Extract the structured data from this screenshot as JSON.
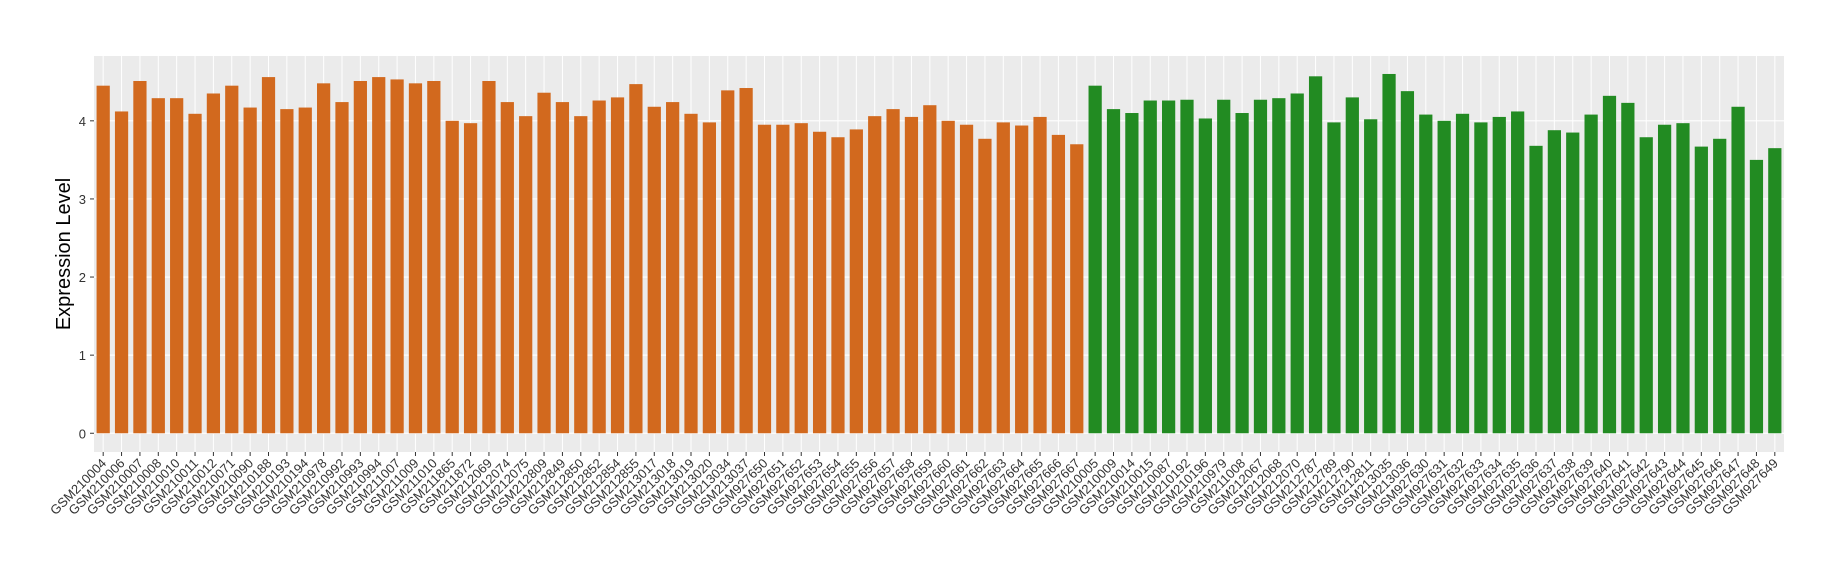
{
  "chart_data": {
    "type": "bar",
    "y_label": "Expression Level",
    "ylim": [
      -0.24,
      4.83
    ],
    "yticks": [
      0,
      1,
      2,
      3,
      4
    ],
    "grid": true,
    "series": [
      {
        "color": "#d2691e",
        "categories": [
          "GSM210004",
          "GSM210006",
          "GSM210007",
          "GSM210008",
          "GSM210010",
          "GSM210011",
          "GSM210012",
          "GSM210071",
          "GSM210090",
          "GSM210188",
          "GSM210193",
          "GSM210194",
          "GSM210978",
          "GSM210992",
          "GSM210993",
          "GSM210994",
          "GSM211007",
          "GSM211009",
          "GSM211010",
          "GSM211865",
          "GSM211872",
          "GSM212069",
          "GSM212074",
          "GSM212075",
          "GSM212809",
          "GSM212849",
          "GSM212850",
          "GSM212852",
          "GSM212854",
          "GSM212855",
          "GSM213017",
          "GSM213018",
          "GSM213019",
          "GSM213020",
          "GSM213034",
          "GSM213037",
          "GSM927650",
          "GSM927651",
          "GSM927652",
          "GSM927653",
          "GSM927654",
          "GSM927655",
          "GSM927656",
          "GSM927657",
          "GSM927658",
          "GSM927659",
          "GSM927660",
          "GSM927661",
          "GSM927662",
          "GSM927663",
          "GSM927664",
          "GSM927665",
          "GSM927666",
          "GSM927667"
        ],
        "values": [
          4.45,
          4.12,
          4.51,
          4.29,
          4.29,
          4.09,
          4.35,
          4.45,
          4.17,
          4.56,
          4.15,
          4.17,
          4.48,
          4.24,
          4.51,
          4.56,
          4.53,
          4.48,
          4.51,
          4.0,
          3.97,
          4.51,
          4.24,
          4.06,
          4.36,
          4.24,
          4.06,
          4.26,
          4.3,
          4.47,
          4.18,
          4.24,
          4.09,
          3.98,
          4.39,
          4.42,
          3.95,
          3.95,
          3.97,
          3.86,
          3.79,
          3.89,
          4.06,
          4.15,
          4.05,
          4.2,
          4.0,
          3.95,
          3.77,
          3.98,
          3.94,
          4.05,
          3.82,
          3.7
        ]
      },
      {
        "color": "#228b22",
        "categories": [
          "GSM210005",
          "GSM210009",
          "GSM210014",
          "GSM210015",
          "GSM210087",
          "GSM210192",
          "GSM210196",
          "GSM210979",
          "GSM211008",
          "GSM212067",
          "GSM212068",
          "GSM212070",
          "GSM212787",
          "GSM212789",
          "GSM212790",
          "GSM212811",
          "GSM213035",
          "GSM213036",
          "GSM927630",
          "GSM927631",
          "GSM927632",
          "GSM927633",
          "GSM927634",
          "GSM927635",
          "GSM927636",
          "GSM927637",
          "GSM927638",
          "GSM927639",
          "GSM927640",
          "GSM927641",
          "GSM927642",
          "GSM927643",
          "GSM927644",
          "GSM927645",
          "GSM927646",
          "GSM927647",
          "GSM927648",
          "GSM927649"
        ],
        "values": [
          4.45,
          4.15,
          4.1,
          4.26,
          4.26,
          4.27,
          4.03,
          4.27,
          4.1,
          4.27,
          4.29,
          4.35,
          4.57,
          3.98,
          4.3,
          4.02,
          4.6,
          4.38,
          4.08,
          4.0,
          4.09,
          3.98,
          4.05,
          4.12,
          3.68,
          3.88,
          3.85,
          4.08,
          4.32,
          4.23,
          3.79,
          3.95,
          3.97,
          3.67,
          3.77,
          4.18,
          3.5,
          3.65
        ]
      }
    ]
  }
}
